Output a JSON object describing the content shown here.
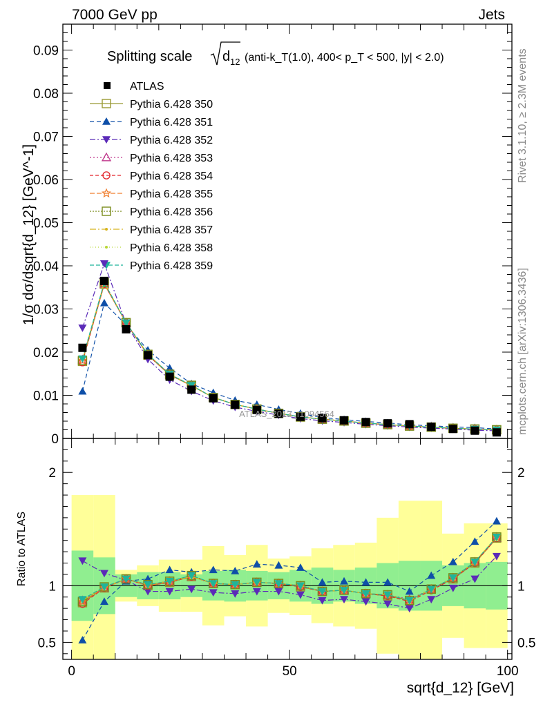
{
  "header": {
    "left": "7000 GeV pp",
    "right": "Jets"
  },
  "side": {
    "rivet": "Rivet 3.1.10, ≥ 2.3M events",
    "source": "mcplots.cern.ch [arXiv:1306.3436]"
  },
  "watermark": "ATLAS_2013_I1094564",
  "chart_data": {
    "type": "line",
    "title": {
      "lead": "Splitting scale",
      "rest": "(anti-k_T(1.0), 400< p_T < 500, |y| < 2.0)"
    },
    "xlabel": "sqrt{d_12} [GeV]",
    "ylabel": "1/σ dσ/dsqrt{d_12} [GeV^-1]",
    "ratio_ylabel": "Ratio to ATLAS",
    "xlim": [
      -2,
      101
    ],
    "ylim": [
      0,
      0.096
    ],
    "ratio_ylim": [
      0.35,
      2.3
    ],
    "x": [
      2.5,
      7.5,
      12.5,
      17.5,
      22.5,
      27.5,
      32.5,
      37.5,
      42.5,
      47.5,
      52.5,
      57.5,
      62.5,
      67.5,
      72.5,
      77.5,
      82.5,
      87.5,
      92.5,
      97.5
    ],
    "x_edges": [
      0,
      5,
      10,
      15,
      20,
      25,
      30,
      35,
      40,
      45,
      50,
      55,
      60,
      65,
      70,
      75,
      80,
      85,
      90,
      95,
      100
    ],
    "x_ticks": [
      0,
      50,
      100
    ],
    "y_ticks": [
      0,
      0.01,
      0.02,
      0.03,
      0.04,
      0.05,
      0.06,
      0.07,
      0.08,
      0.09
    ],
    "y_tick_labels": [
      "0",
      "0.01",
      "0.02",
      "0.03",
      "0.04",
      "0.05",
      "0.06",
      "0.07",
      "0.08",
      "0.09"
    ],
    "ratio_ticks": [
      0.5,
      1,
      2
    ],
    "ratio_tick_labels": [
      "0.5",
      "1",
      "2"
    ],
    "data": {
      "name": "ATLAS",
      "values": [
        0.021,
        0.0365,
        0.0253,
        0.0193,
        0.0143,
        0.0113,
        0.0093,
        0.0078,
        0.0066,
        0.0057,
        0.005,
        0.0047,
        0.0042,
        0.0038,
        0.0035,
        0.0033,
        0.0027,
        0.0022,
        0.0018,
        0.0014
      ]
    },
    "bands": {
      "inner": [
        0.31,
        0.25,
        0.1,
        0.12,
        0.12,
        0.1,
        0.13,
        0.14,
        0.13,
        0.12,
        0.14,
        0.16,
        0.14,
        0.16,
        0.2,
        0.22,
        0.22,
        0.18,
        0.2,
        0.21
      ],
      "outer": [
        0.8,
        0.8,
        0.14,
        0.18,
        0.23,
        0.23,
        0.35,
        0.27,
        0.36,
        0.24,
        0.26,
        0.33,
        0.36,
        0.38,
        0.6,
        0.75,
        0.75,
        0.46,
        0.55,
        0.55
      ]
    },
    "series": [
      {
        "name": "Pythia 6.428 350",
        "color": "#999933",
        "marker": "square-open",
        "dash": "",
        "ratio": [
          0.85,
          0.98,
          1.06,
          1.0,
          1.03,
          1.08,
          1.02,
          1.01,
          1.03,
          1.02,
          0.99,
          0.95,
          0.96,
          0.93,
          0.91,
          0.87,
          0.97,
          1.06,
          1.2,
          1.42
        ]
      },
      {
        "name": "Pythia 6.428 351",
        "color": "#0e4fa8",
        "marker": "triangle-up",
        "dash": "6 4",
        "ratio": [
          0.52,
          0.86,
          1.04,
          1.06,
          1.14,
          1.12,
          1.14,
          1.13,
          1.19,
          1.18,
          1.16,
          1.03,
          1.04,
          1.03,
          1.03,
          0.95,
          1.09,
          1.21,
          1.39,
          1.57
        ]
      },
      {
        "name": "Pythia 6.428 352",
        "color": "#5b2ab8",
        "marker": "triangle-down",
        "dash": "8 3 2 3",
        "ratio": [
          1.22,
          1.11,
          1.05,
          0.95,
          0.95,
          0.97,
          0.94,
          0.93,
          0.95,
          0.95,
          0.92,
          0.87,
          0.88,
          0.86,
          0.84,
          0.8,
          0.88,
          0.98,
          1.06,
          1.26
        ]
      },
      {
        "name": "Pythia 6.428 353",
        "color": "#c0398d",
        "marker": "triangle-open",
        "dash": "2 3",
        "ratio": [
          0.87,
          0.98,
          1.06,
          1.01,
          1.04,
          1.08,
          1.02,
          1.01,
          1.03,
          1.02,
          1.0,
          0.95,
          0.96,
          0.93,
          0.92,
          0.88,
          0.97,
          1.07,
          1.21,
          1.42
        ]
      },
      {
        "name": "Pythia 6.428 354",
        "color": "#e3242b",
        "marker": "circle-open",
        "dash": "5 3",
        "ratio": [
          0.84,
          0.98,
          1.06,
          1.0,
          1.03,
          1.08,
          1.02,
          1.01,
          1.03,
          1.02,
          0.99,
          0.95,
          0.96,
          0.93,
          0.91,
          0.86,
          0.96,
          1.06,
          1.2,
          1.42
        ]
      },
      {
        "name": "Pythia 6.428 355",
        "color": "#f07d2d",
        "marker": "star-open",
        "dash": "7 3",
        "ratio": [
          0.86,
          0.98,
          1.06,
          1.0,
          1.04,
          1.08,
          1.02,
          1.01,
          1.03,
          1.02,
          1.0,
          0.95,
          0.96,
          0.93,
          0.92,
          0.87,
          0.97,
          1.07,
          1.21,
          1.43
        ]
      },
      {
        "name": "Pythia 6.428 356",
        "color": "#7a8c1c",
        "marker": "square-open",
        "dash": "2 2",
        "ratio": [
          0.86,
          0.99,
          1.06,
          1.01,
          1.04,
          1.09,
          1.02,
          1.01,
          1.03,
          1.02,
          1.0,
          0.95,
          0.96,
          0.93,
          0.92,
          0.87,
          0.97,
          1.07,
          1.21,
          1.43
        ]
      },
      {
        "name": "Pythia 6.428 357",
        "color": "#d7b51f",
        "marker": "dot",
        "dash": "9 3 2 3",
        "ratio": [
          0.87,
          0.99,
          1.06,
          1.01,
          1.04,
          1.08,
          1.02,
          1.01,
          1.03,
          1.02,
          1.0,
          0.95,
          0.96,
          0.93,
          0.92,
          0.87,
          0.97,
          1.07,
          1.21,
          1.43
        ]
      },
      {
        "name": "Pythia 6.428 358",
        "color": "#b8d634",
        "marker": "dot",
        "dash": "1 3",
        "ratio": [
          0.87,
          0.99,
          1.06,
          1.01,
          1.04,
          1.08,
          1.02,
          1.01,
          1.03,
          1.02,
          1.0,
          0.95,
          0.96,
          0.93,
          0.92,
          0.87,
          0.97,
          1.07,
          1.21,
          1.43
        ]
      },
      {
        "name": "Pythia 6.428 359",
        "color": "#1fb59a",
        "marker": "triangle-down",
        "dash": "6 3",
        "ratio": [
          0.88,
          0.99,
          1.06,
          1.01,
          1.04,
          1.09,
          1.02,
          1.01,
          1.03,
          1.02,
          1.0,
          0.95,
          0.96,
          0.93,
          0.92,
          0.87,
          0.97,
          1.07,
          1.21,
          1.43
        ]
      }
    ]
  }
}
